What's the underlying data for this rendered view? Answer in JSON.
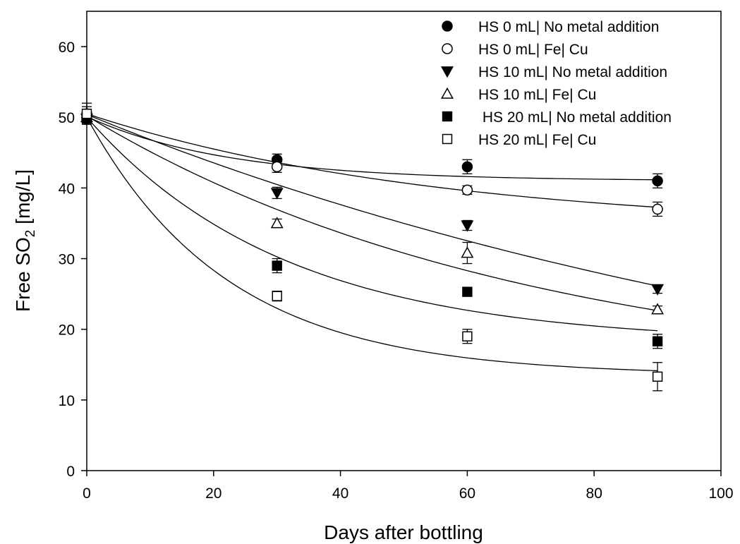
{
  "chart_data": {
    "type": "scatter",
    "title": "",
    "xlabel": "Days after bottling",
    "ylabel_prefix": "Free SO",
    "ylabel_subscript": "2",
    "ylabel_suffix": " [mg/L]",
    "xlim": [
      0,
      100
    ],
    "ylim": [
      0,
      65
    ],
    "xticks": [
      0,
      20,
      40,
      60,
      80,
      100
    ],
    "yticks": [
      0,
      10,
      20,
      30,
      40,
      50,
      60
    ],
    "grid": false,
    "legend_position": "top-right",
    "x": [
      0,
      30,
      60,
      90
    ],
    "series": [
      {
        "name": "HS 0 mL| No metal addition",
        "marker": "filled-circle",
        "values": [
          49.8,
          44.0,
          43.0,
          41.0
        ],
        "errors": [
          0.5,
          0.8,
          1.0,
          1.0
        ],
        "fit": [
          41.0,
          9.1,
          0.045
        ]
      },
      {
        "name": "HS 0 mL| Fe| Cu",
        "marker": "open-circle",
        "values": [
          50.5,
          43.0,
          39.7,
          37.0
        ],
        "errors": [
          1.5,
          0.8,
          0.6,
          1.0
        ],
        "fit": [
          34.0,
          16.5,
          0.018
        ]
      },
      {
        "name": "HS 10 mL| No metal addition",
        "marker": "filled-triangle-down",
        "values": [
          49.8,
          39.3,
          34.7,
          25.7
        ],
        "errors": [
          0.5,
          0.8,
          0.7,
          0.6
        ],
        "fit": [
          0.0,
          50.4,
          0.0073
        ]
      },
      {
        "name": "HS 10 mL| Fe| Cu",
        "marker": "open-triangle-up",
        "values": [
          50.0,
          35.0,
          30.8,
          22.8
        ],
        "errors": [
          0.5,
          0.6,
          1.5,
          0.5
        ],
        "fit": [
          12.0,
          38.2,
          0.0142
        ]
      },
      {
        "name": " HS 20 mL| No metal addition",
        "marker": "filled-square",
        "values": [
          49.8,
          29.0,
          25.3,
          18.3
        ],
        "errors": [
          0.5,
          1.0,
          0.6,
          1.0
        ],
        "fit": [
          18.0,
          32.0,
          0.032
        ]
      },
      {
        "name": "HS 20 mL| Fe| Cu",
        "marker": "open-square",
        "values": [
          50.5,
          24.7,
          19.0,
          13.3
        ],
        "errors": [
          1.0,
          0.7,
          1.0,
          2.0
        ],
        "fit": [
          13.5,
          36.5,
          0.045
        ]
      }
    ]
  }
}
